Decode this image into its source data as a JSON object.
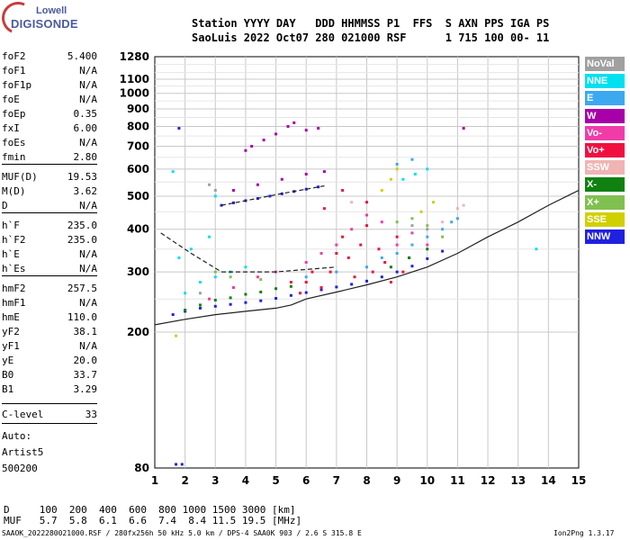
{
  "logo": {
    "line1": "Lowell",
    "line2": "DIGISONDE"
  },
  "header": {
    "line1": "Station YYYY DAY   DDD HHMMSS P1  FFS  S AXN PPS IGA PS",
    "line2": "SaoLuis 2022 Oct07 280 021000 RSF      1 715 100 00- 11"
  },
  "params": [
    {
      "name": "foF2",
      "value": "5.400"
    },
    {
      "name": "foF1",
      "value": "N/A"
    },
    {
      "name": "foF1p",
      "value": "N/A"
    },
    {
      "name": "foE",
      "value": "N/A"
    },
    {
      "name": "foEp",
      "value": "0.35"
    },
    {
      "name": "fxI",
      "value": "6.00"
    },
    {
      "name": "foEs",
      "value": "N/A"
    },
    {
      "name": "fmin",
      "value": "2.80"
    },
    {
      "name": "MUF(D)",
      "value": "19.53"
    },
    {
      "name": "M(D)",
      "value": "3.62"
    },
    {
      "name": "D",
      "value": "N/A"
    },
    {
      "name": "h`F",
      "value": "235.0"
    },
    {
      "name": "h`F2",
      "value": "235.0"
    },
    {
      "name": "h`E",
      "value": "N/A"
    },
    {
      "name": "h`Es",
      "value": "N/A"
    },
    {
      "name": "hmF2",
      "value": "257.5"
    },
    {
      "name": "hmF1",
      "value": "N/A"
    },
    {
      "name": "hmE",
      "value": "110.0"
    },
    {
      "name": "yF2",
      "value": "38.1"
    },
    {
      "name": "yF1",
      "value": "N/A"
    },
    {
      "name": "yE",
      "value": "20.0"
    },
    {
      "name": "B0",
      "value": "33.7"
    },
    {
      "name": "B1",
      "value": "3.29"
    },
    {
      "name": "C-level",
      "value": "33"
    }
  ],
  "notes": {
    "auto": "Auto:",
    "artist": "Artist5",
    "version": "500200"
  },
  "bottom": {
    "d_row": "D     100  200  400  600  800 1000 1500 3000 [km]",
    "muf_row": "MUF   5.7  5.8  6.1  6.6  7.4  8.4 11.5 19.5 [MHz]",
    "footer_left": "SAAOK_2022280021000.RSF / 280fx256h 50 kHz 5.0 km / DPS-4 SAA0K 903 / 2.6 S 315.8 E",
    "footer_right": "Ion2Png 1.3.17"
  },
  "colors": {
    "NoVal": "#a0a0a0",
    "NNE": "#00e0f0",
    "E": "#3ca8f0",
    "W": "#a800a8",
    "Vo-": "#f03ca8",
    "Vo+": "#f01040",
    "SSW": "#f0b4b4",
    "X-": "#108010",
    "X+": "#80c050",
    "SSE": "#d0d000",
    "NNW": "#2020e0"
  },
  "chart_data": {
    "type": "scatter",
    "title": "",
    "xlabel": "",
    "ylabel": "",
    "xlim": [
      1,
      15
    ],
    "ylim": [
      80,
      1280
    ],
    "y_scale": "log",
    "x_ticks": [
      1,
      2,
      3,
      4,
      5,
      6,
      7,
      8,
      9,
      10,
      11,
      12,
      13,
      14,
      15
    ],
    "y_ticks": [
      80,
      200,
      300,
      400,
      500,
      600,
      700,
      800,
      900,
      1000,
      1100,
      1280
    ],
    "grid": true,
    "legend": {
      "placement": "right",
      "entries": [
        "NoVal",
        "NNE",
        "E",
        "W",
        "Vo-",
        "Vo+",
        "SSW",
        "X-",
        "X+",
        "SSE",
        "NNW"
      ]
    },
    "series": [
      {
        "name": "NNW",
        "points": [
          [
            1.6,
            225
          ],
          [
            2.0,
            230
          ],
          [
            2.5,
            235
          ],
          [
            3.0,
            238
          ],
          [
            3.5,
            241
          ],
          [
            4.0,
            244
          ],
          [
            4.5,
            247
          ],
          [
            5.0,
            251
          ],
          [
            5.5,
            256
          ],
          [
            6.0,
            261
          ],
          [
            6.5,
            266
          ],
          [
            7.0,
            271
          ],
          [
            7.5,
            276
          ],
          [
            8.0,
            282
          ],
          [
            8.5,
            290
          ],
          [
            9.0,
            300
          ],
          [
            9.5,
            312
          ],
          [
            10.0,
            328
          ],
          [
            10.5,
            345
          ],
          [
            3.2,
            470
          ],
          [
            3.6,
            478
          ],
          [
            4.0,
            485
          ],
          [
            4.4,
            492
          ],
          [
            4.8,
            500
          ],
          [
            5.2,
            508
          ],
          [
            5.6,
            516
          ],
          [
            6.0,
            524
          ],
          [
            6.4,
            532
          ],
          [
            1.7,
            82
          ],
          [
            1.9,
            82
          ],
          [
            1.8,
            790
          ]
        ]
      },
      {
        "name": "Vo+",
        "points": [
          [
            6.5,
            270
          ],
          [
            6.8,
            300
          ],
          [
            7.0,
            340
          ],
          [
            7.2,
            380
          ],
          [
            7.4,
            330
          ],
          [
            7.6,
            290
          ],
          [
            7.8,
            360
          ],
          [
            8.0,
            410
          ],
          [
            8.2,
            300
          ],
          [
            8.4,
            350
          ],
          [
            8.6,
            320
          ],
          [
            8.8,
            280
          ],
          [
            9.0,
            380
          ],
          [
            9.2,
            300
          ],
          [
            9.4,
            330
          ],
          [
            5.8,
            260
          ],
          [
            6.0,
            280
          ],
          [
            6.2,
            300
          ],
          [
            5.5,
            280
          ],
          [
            6.6,
            460
          ],
          [
            7.2,
            520
          ],
          [
            8.0,
            480
          ]
        ]
      },
      {
        "name": "Vo-",
        "points": [
          [
            7.0,
            360
          ],
          [
            7.5,
            400
          ],
          [
            8.0,
            440
          ],
          [
            8.5,
            420
          ],
          [
            9.0,
            360
          ],
          [
            9.5,
            390
          ],
          [
            10.0,
            360
          ],
          [
            6.0,
            320
          ],
          [
            6.5,
            340
          ],
          [
            5.0,
            300
          ],
          [
            4.4,
            290
          ],
          [
            3.6,
            270
          ],
          [
            2.8,
            250
          ]
        ]
      },
      {
        "name": "W",
        "points": [
          [
            4.2,
            700
          ],
          [
            4.6,
            730
          ],
          [
            5.0,
            760
          ],
          [
            5.4,
            800
          ],
          [
            5.6,
            820
          ],
          [
            6.0,
            780
          ],
          [
            6.4,
            790
          ],
          [
            4.0,
            680
          ],
          [
            3.6,
            520
          ],
          [
            4.4,
            540
          ],
          [
            5.2,
            560
          ],
          [
            6.0,
            580
          ],
          [
            6.6,
            590
          ],
          [
            11.2,
            790
          ]
        ]
      },
      {
        "name": "X-",
        "points": [
          [
            2.0,
            232
          ],
          [
            2.5,
            240
          ],
          [
            3.0,
            248
          ],
          [
            3.5,
            252
          ],
          [
            4.0,
            258
          ],
          [
            4.5,
            262
          ],
          [
            5.0,
            268
          ],
          [
            5.5,
            272
          ],
          [
            8.8,
            310
          ],
          [
            9.4,
            330
          ],
          [
            10.0,
            350
          ]
        ]
      },
      {
        "name": "X+",
        "points": [
          [
            3.0,
            300
          ],
          [
            3.5,
            290
          ],
          [
            4.5,
            285
          ],
          [
            9.0,
            420
          ],
          [
            9.5,
            430
          ],
          [
            10.0,
            410
          ],
          [
            10.5,
            380
          ]
        ]
      },
      {
        "name": "NNE",
        "points": [
          [
            2.0,
            260
          ],
          [
            2.5,
            280
          ],
          [
            3.0,
            290
          ],
          [
            3.5,
            300
          ],
          [
            4.0,
            310
          ],
          [
            1.6,
            590
          ],
          [
            1.8,
            330
          ],
          [
            2.2,
            350
          ],
          [
            2.8,
            380
          ],
          [
            3.0,
            500
          ],
          [
            9.2,
            560
          ],
          [
            9.6,
            580
          ],
          [
            10.0,
            600
          ],
          [
            13.6,
            350
          ]
        ]
      },
      {
        "name": "E",
        "points": [
          [
            6.0,
            290
          ],
          [
            7.0,
            300
          ],
          [
            8.0,
            310
          ],
          [
            8.5,
            330
          ],
          [
            9.0,
            340
          ],
          [
            9.5,
            360
          ],
          [
            10.0,
            380
          ],
          [
            10.5,
            400
          ],
          [
            10.8,
            420
          ],
          [
            11.0,
            430
          ],
          [
            9.0,
            620
          ],
          [
            9.5,
            640
          ]
        ]
      },
      {
        "name": "SSE",
        "points": [
          [
            8.5,
            520
          ],
          [
            8.8,
            560
          ],
          [
            9.0,
            600
          ],
          [
            10.2,
            480
          ],
          [
            9.8,
            450
          ],
          [
            1.7,
            195
          ]
        ]
      },
      {
        "name": "SSW",
        "points": [
          [
            10.5,
            420
          ],
          [
            11.0,
            460
          ],
          [
            11.2,
            470
          ],
          [
            7.5,
            480
          ]
        ]
      },
      {
        "name": "NoVal",
        "points": [
          [
            9.5,
            410
          ],
          [
            10.0,
            400
          ],
          [
            3.0,
            520
          ],
          [
            2.8,
            540
          ],
          [
            2.5,
            260
          ]
        ]
      }
    ],
    "profile_lines": [
      {
        "name": "trace",
        "points": [
          [
            1.0,
            210
          ],
          [
            2.0,
            218
          ],
          [
            3.0,
            225
          ],
          [
            4.0,
            230
          ],
          [
            5.0,
            235
          ],
          [
            5.5,
            240
          ],
          [
            6.0,
            250
          ],
          [
            7.0,
            262
          ],
          [
            8.0,
            275
          ],
          [
            9.0,
            290
          ],
          [
            10.0,
            310
          ],
          [
            11.0,
            340
          ],
          [
            12.0,
            380
          ],
          [
            13.0,
            420
          ],
          [
            14.0,
            470
          ],
          [
            15.0,
            520
          ]
        ]
      },
      {
        "name": "dashed-lower",
        "points": [
          [
            1.2,
            390
          ],
          [
            2.2,
            340
          ],
          [
            3.2,
            300
          ],
          [
            4.0,
            300
          ],
          [
            5.0,
            300
          ],
          [
            6.0,
            305
          ],
          [
            7.0,
            310
          ]
        ]
      },
      {
        "name": "dashed-upper",
        "points": [
          [
            3.2,
            470
          ],
          [
            4.0,
            485
          ],
          [
            5.0,
            505
          ],
          [
            6.0,
            524
          ],
          [
            6.6,
            536
          ]
        ]
      }
    ]
  }
}
